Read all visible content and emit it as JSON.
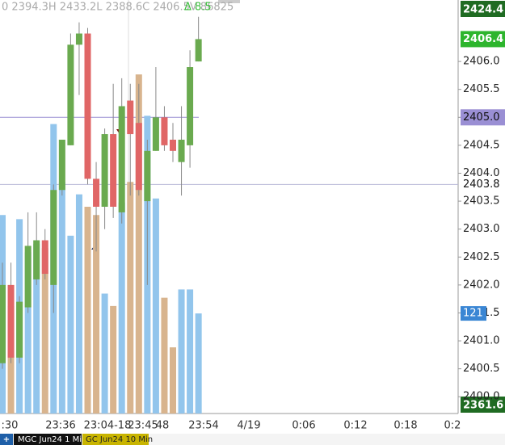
{
  "chart_data": {
    "type": "candlestick",
    "header": "0 2394.3H 2433.2L 2388.6C 2406.5V 86825",
    "header_change": "Δ 8.5",
    "open": [
      2400.6,
      2402.0,
      2400.7,
      2401.6,
      2402.1,
      2402.8,
      2402.0,
      2403.7,
      2404.5,
      2406.3,
      2406.5,
      2403.9,
      2403.4,
      2404.7,
      2403.3,
      2405.3,
      2404.9,
      2403.5,
      2404.4,
      2405.0,
      2404.6,
      2404.2,
      2404.5,
      2406.0
    ],
    "high": [
      2402.4,
      2402.4,
      2401.8,
      2403.3,
      2403.3,
      2403.0,
      2403.8,
      2404.6,
      2406.5,
      2406.7,
      2406.6,
      2404.2,
      2404.8,
      2405.6,
      2405.7,
      2405.6,
      2405.6,
      2404.6,
      2405.9,
      2405.2,
      2404.9,
      2405.2,
      2406.2,
      2406.8
    ],
    "low": [
      2400.5,
      2400.6,
      2400.6,
      2401.5,
      2402.0,
      2402.1,
      2401.5,
      2403.6,
      2404.5,
      2405.4,
      2403.8,
      2402.6,
      2403.0,
      2403.2,
      2403.1,
      2403.6,
      2403.6,
      2402.0,
      2404.4,
      2404.4,
      2404.2,
      2403.6,
      2404.1,
      2406.0
    ],
    "close": [
      2402.0,
      2400.7,
      2401.7,
      2402.7,
      2402.8,
      2402.2,
      2403.7,
      2404.6,
      2406.3,
      2406.5,
      2403.9,
      2403.4,
      2404.7,
      2403.4,
      2405.2,
      2404.7,
      2403.7,
      2404.4,
      2405.0,
      2404.5,
      2404.4,
      2404.6,
      2405.9,
      2406.4
    ],
    "volume": [
      240,
      130,
      235,
      195,
      205,
      200,
      350,
      280,
      215,
      265,
      250,
      240,
      145,
      130,
      255,
      280,
      410,
      360,
      260,
      140,
      80,
      150,
      150,
      121
    ],
    "up_color": "#6aaa4f",
    "down_color": "#e06666",
    "vol_up_color": "#92c5ec",
    "vol_down_color": "#d8b48e",
    "ylim": [
      2399.7,
      2407.1
    ],
    "vlim": [
      0,
      500
    ],
    "yticks": [
      {
        "value": 2406,
        "label": "2406.0"
      },
      2405.5,
      {
        "value": 2405,
        "label": "2405.0"
      },
      2404.5,
      {
        "value": 2404,
        "label": "2404.0"
      },
      2403.5,
      {
        "value": 2403,
        "label": "2403.0"
      },
      2402.5,
      {
        "value": 2402,
        "label": "2402.0"
      },
      2401.5,
      {
        "value": 2401,
        "label": "2401.0"
      },
      2400.5,
      {
        "value": 2400,
        "label": "2400.0"
      }
    ],
    "levels": [
      {
        "value": 2405,
        "label": "2405.0",
        "color": "#9a8fd4"
      },
      {
        "value": 2403.8,
        "label": "2403.8",
        "color": "#b8b8d8"
      }
    ],
    "top_label": "2424.4",
    "bottom_label": "2361.6",
    "xlabels": [
      ":30",
      "23:36",
      "23:04-18",
      "23:45",
      "48",
      "23:54",
      "4/19",
      "0:06",
      "0:12",
      "0:18",
      "0:2"
    ],
    "tabs": [
      "+",
      "MGC Jun24 1 Min",
      "GC Jun24 10 Min"
    ]
  }
}
